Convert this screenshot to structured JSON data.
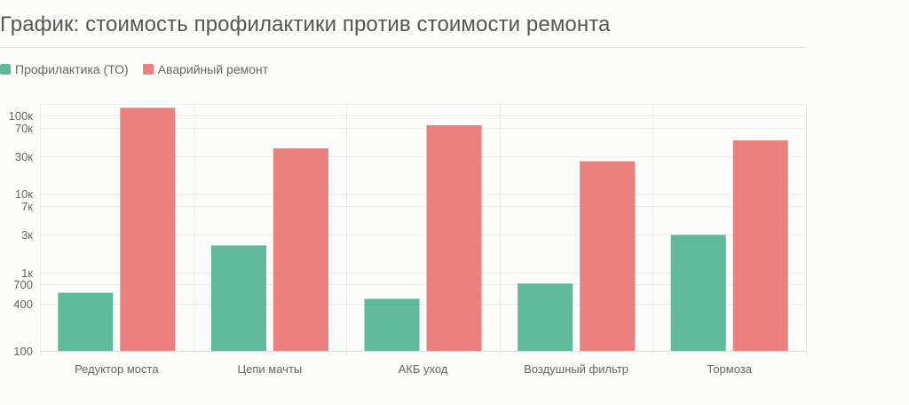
{
  "chart_data": {
    "type": "bar",
    "title": "График: стоимость профилактики против стоимости ремонта",
    "xlabel": "",
    "ylabel": "",
    "y_scale": "log",
    "ylim": [
      100,
      140000
    ],
    "y_ticks": [
      {
        "value": 100,
        "label": "100"
      },
      {
        "value": 400,
        "label": "400"
      },
      {
        "value": 700,
        "label": "700"
      },
      {
        "value": 1000,
        "label": "1к"
      },
      {
        "value": 3000,
        "label": "3к"
      },
      {
        "value": 7000,
        "label": "7к"
      },
      {
        "value": 10000,
        "label": "10к"
      },
      {
        "value": 30000,
        "label": "30к"
      },
      {
        "value": 70000,
        "label": "70к"
      },
      {
        "value": 100000,
        "label": "100к"
      }
    ],
    "categories": [
      "Редуктор моста",
      "Цепи мачты",
      "АКБ уход",
      "Воздушный фильтр",
      "Тормоза"
    ],
    "series": [
      {
        "name": "Профилактика (ТО)",
        "color": "#5fba9c",
        "values": [
          550,
          2200,
          460,
          720,
          3000
        ]
      },
      {
        "name": "Аварийный ремонт",
        "color": "#eb807f",
        "values": [
          125000,
          38000,
          75000,
          26000,
          48000
        ]
      }
    ],
    "grid": true,
    "legend": "top-left"
  }
}
